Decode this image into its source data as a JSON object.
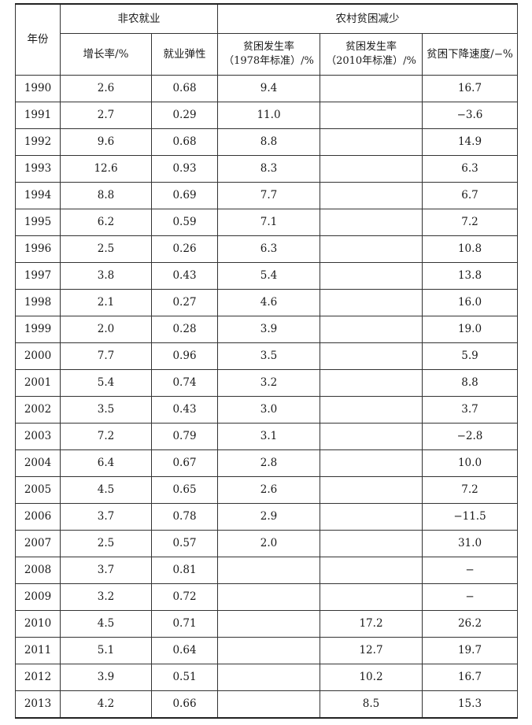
{
  "header": {
    "year": "年份",
    "group_nonfarm": "非农就业",
    "group_rural": "农村贫困减少",
    "growth_rate": "增长率/%",
    "elasticity": "就业弹性",
    "poverty_1978_line1": "贫困发生率",
    "poverty_1978_line2": "（1978年标准）/%",
    "poverty_2010_line1": "贫困发生率",
    "poverty_2010_line2": "（2010年标准）/%",
    "decline_speed": "贫困下降速度/−%"
  },
  "rows": [
    {
      "year": "1990",
      "growth": "2.6",
      "elasticity": "0.68",
      "p1978": "9.4",
      "p2010": "",
      "speed": "16.7"
    },
    {
      "year": "1991",
      "growth": "2.7",
      "elasticity": "0.29",
      "p1978": "11.0",
      "p2010": "",
      "speed": "−3.6"
    },
    {
      "year": "1992",
      "growth": "9.6",
      "elasticity": "0.68",
      "p1978": "8.8",
      "p2010": "",
      "speed": "14.9"
    },
    {
      "year": "1993",
      "growth": "12.6",
      "elasticity": "0.93",
      "p1978": "8.3",
      "p2010": "",
      "speed": "6.3"
    },
    {
      "year": "1994",
      "growth": "8.8",
      "elasticity": "0.69",
      "p1978": "7.7",
      "p2010": "",
      "speed": "6.7"
    },
    {
      "year": "1995",
      "growth": "6.2",
      "elasticity": "0.59",
      "p1978": "7.1",
      "p2010": "",
      "speed": "7.2"
    },
    {
      "year": "1996",
      "growth": "2.5",
      "elasticity": "0.26",
      "p1978": "6.3",
      "p2010": "",
      "speed": "10.8"
    },
    {
      "year": "1997",
      "growth": "3.8",
      "elasticity": "0.43",
      "p1978": "5.4",
      "p2010": "",
      "speed": "13.8"
    },
    {
      "year": "1998",
      "growth": "2.1",
      "elasticity": "0.27",
      "p1978": "4.6",
      "p2010": "",
      "speed": "16.0"
    },
    {
      "year": "1999",
      "growth": "2.0",
      "elasticity": "0.28",
      "p1978": "3.9",
      "p2010": "",
      "speed": "19.0"
    },
    {
      "year": "2000",
      "growth": "7.7",
      "elasticity": "0.96",
      "p1978": "3.5",
      "p2010": "",
      "speed": "5.9"
    },
    {
      "year": "2001",
      "growth": "5.4",
      "elasticity": "0.74",
      "p1978": "3.2",
      "p2010": "",
      "speed": "8.8"
    },
    {
      "year": "2002",
      "growth": "3.5",
      "elasticity": "0.43",
      "p1978": "3.0",
      "p2010": "",
      "speed": "3.7"
    },
    {
      "year": "2003",
      "growth": "7.2",
      "elasticity": "0.79",
      "p1978": "3.1",
      "p2010": "",
      "speed": "−2.8"
    },
    {
      "year": "2004",
      "growth": "6.4",
      "elasticity": "0.67",
      "p1978": "2.8",
      "p2010": "",
      "speed": "10.0"
    },
    {
      "year": "2005",
      "growth": "4.5",
      "elasticity": "0.65",
      "p1978": "2.6",
      "p2010": "",
      "speed": "7.2"
    },
    {
      "year": "2006",
      "growth": "3.7",
      "elasticity": "0.78",
      "p1978": "2.9",
      "p2010": "",
      "speed": "−11.5"
    },
    {
      "year": "2007",
      "growth": "2.5",
      "elasticity": "0.57",
      "p1978": "2.0",
      "p2010": "",
      "speed": "31.0"
    },
    {
      "year": "2008",
      "growth": "3.7",
      "elasticity": "0.81",
      "p1978": "",
      "p2010": "",
      "speed": "−"
    },
    {
      "year": "2009",
      "growth": "3.2",
      "elasticity": "0.72",
      "p1978": "",
      "p2010": "",
      "speed": "−"
    },
    {
      "year": "2010",
      "growth": "4.5",
      "elasticity": "0.71",
      "p1978": "",
      "p2010": "17.2",
      "speed": "26.2"
    },
    {
      "year": "2011",
      "growth": "5.1",
      "elasticity": "0.64",
      "p1978": "",
      "p2010": "12.7",
      "speed": "19.7"
    },
    {
      "year": "2012",
      "growth": "3.9",
      "elasticity": "0.51",
      "p1978": "",
      "p2010": "10.2",
      "speed": "16.7"
    },
    {
      "year": "2013",
      "growth": "4.2",
      "elasticity": "0.66",
      "p1978": "",
      "p2010": "8.5",
      "speed": "15.3"
    }
  ]
}
